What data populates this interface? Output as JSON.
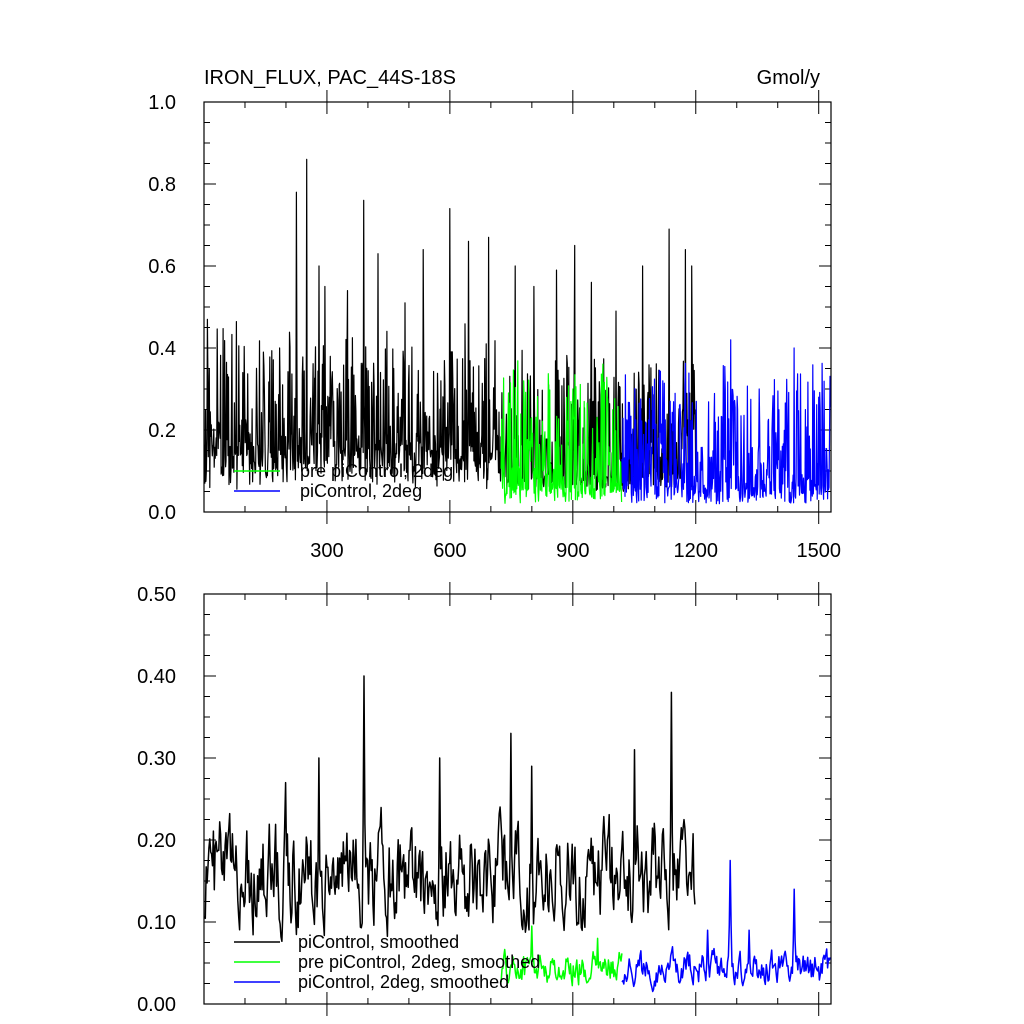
{
  "chart_data": [
    {
      "type": "line",
      "title_left": "IRON_FLUX, PAC_44S-18S",
      "title_right": "Gmol/y",
      "xlim": [
        0,
        1530
      ],
      "ylim": [
        0,
        1.0
      ],
      "x_ticks": [
        300,
        600,
        900,
        1200,
        1500
      ],
      "y_ticks": [
        0.0,
        0.2,
        0.4,
        0.6,
        0.8,
        1.0
      ],
      "y_tick_labels": [
        "0.0",
        "0.2",
        "0.4",
        "0.6",
        "0.8",
        "1.0"
      ],
      "legend": {
        "placement": "lower-left",
        "overlapped": true,
        "entries": [
          "pre piControl, 2deg",
          "piControl, 2deg"
        ]
      },
      "series": [
        {
          "color": "#000000",
          "x_range": [
            1,
            1200
          ],
          "baseline": 0.05,
          "peaks": [
            [
              8,
              0.47
            ],
            [
              95,
              0.34
            ],
            [
              145,
              0.39
            ],
            [
              185,
              0.4
            ],
            [
              225,
              0.78
            ],
            [
              250,
              0.86
            ],
            [
              280,
              0.6
            ],
            [
              295,
              0.55
            ],
            [
              350,
              0.54
            ],
            [
              390,
              0.76
            ],
            [
              425,
              0.63
            ],
            [
              490,
              0.51
            ],
            [
              535,
              0.64
            ],
            [
              600,
              0.74
            ],
            [
              645,
              0.66
            ],
            [
              695,
              0.67
            ],
            [
              760,
              0.6
            ],
            [
              805,
              0.55
            ],
            [
              860,
              0.59
            ],
            [
              905,
              0.65
            ],
            [
              945,
              0.56
            ],
            [
              1005,
              0.49
            ],
            [
              1070,
              0.6
            ],
            [
              1135,
              0.69
            ],
            [
              1175,
              0.64
            ],
            [
              1190,
              0.6
            ]
          ]
        },
        {
          "name": "pre piControl, 2deg",
          "color": "#00ff00",
          "x_range": [
            725,
            1020
          ],
          "baseline": 0.02,
          "peaks": [
            [
              800,
              0.23
            ],
            [
              900,
              0.3
            ],
            [
              960,
              0.2
            ]
          ]
        },
        {
          "name": "piControl, 2deg",
          "color": "#0000ff",
          "x_range": [
            1020,
            1530
          ],
          "baseline": 0.02,
          "peaks": [
            [
              1285,
              0.42
            ],
            [
              1440,
              0.4
            ],
            [
              1355,
              0.3
            ],
            [
              1500,
              0.28
            ],
            [
              1120,
              0.32
            ]
          ]
        }
      ]
    },
    {
      "type": "line",
      "xlim": [
        0,
        1530
      ],
      "ylim": [
        0,
        0.5
      ],
      "x_ticks": [
        300,
        600,
        900,
        1200,
        1500
      ],
      "y_ticks": [
        0.0,
        0.1,
        0.2,
        0.3,
        0.4,
        0.5
      ],
      "y_tick_labels": [
        "0.00",
        "0.10",
        "0.20",
        "0.30",
        "0.40",
        "0.50"
      ],
      "legend": {
        "placement": "bottom-left",
        "entries": [
          "piControl, smoothed",
          "pre piControl, 2deg, smoothed",
          "piControl, 2deg, smoothed"
        ]
      },
      "series": [
        {
          "name": "piControl, smoothed",
          "color": "#000000",
          "x_range": [
            1,
            1200
          ],
          "mean": 0.15,
          "peaks": [
            [
              390,
              0.4
            ],
            [
              1140,
              0.38
            ],
            [
              750,
              0.33
            ],
            [
              280,
              0.3
            ],
            [
              1050,
              0.31
            ],
            [
              575,
              0.3
            ],
            [
              200,
              0.27
            ],
            [
              800,
              0.29
            ]
          ]
        },
        {
          "name": "pre piControl, 2deg, smoothed",
          "color": "#00ff00",
          "x_range": [
            725,
            1020
          ],
          "mean": 0.04,
          "peaks": [
            [
              800,
              0.095
            ],
            [
              960,
              0.08
            ]
          ]
        },
        {
          "name": "piControl, 2deg, smoothed",
          "color": "#0000ff",
          "x_range": [
            1020,
            1530
          ],
          "mean": 0.04,
          "peaks": [
            [
              1285,
              0.175
            ],
            [
              1440,
              0.14
            ],
            [
              1330,
              0.09
            ],
            [
              1230,
              0.09
            ]
          ]
        }
      ]
    }
  ]
}
